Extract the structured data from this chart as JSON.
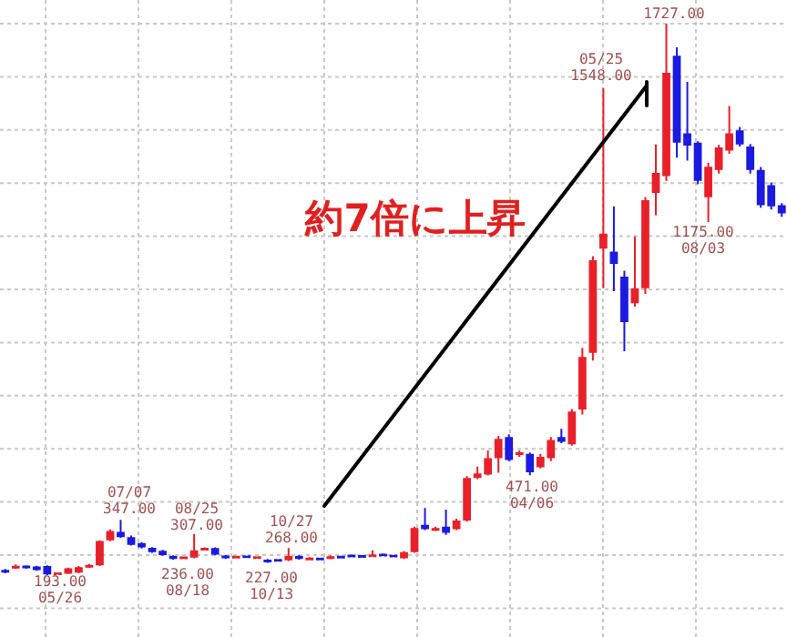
{
  "chart_data": {
    "type": "candlestick",
    "grid": true,
    "categories": [
      null,
      null,
      null,
      null,
      null,
      null,
      null,
      null,
      null,
      null,
      null,
      null,
      null,
      null,
      null,
      null,
      null,
      null,
      null,
      null,
      null,
      null,
      null,
      null,
      null,
      null,
      null,
      null,
      null,
      null,
      null,
      null,
      null,
      null,
      null,
      null,
      null,
      null,
      null,
      null,
      null,
      null,
      null,
      null,
      null,
      null,
      null,
      null,
      null,
      null,
      null,
      null,
      null,
      null,
      null,
      null,
      null,
      null,
      null,
      null,
      null,
      null,
      null,
      null,
      null,
      null,
      null,
      null,
      null,
      null,
      null,
      null,
      null,
      null,
      null
    ],
    "ohlc": [
      [
        207,
        210,
        198,
        200
      ],
      [
        212,
        223,
        210,
        218
      ],
      [
        218,
        220,
        211,
        213
      ],
      [
        217,
        219,
        205,
        207
      ],
      [
        218,
        220,
        193,
        195
      ],
      [
        195,
        200,
        195,
        198
      ],
      [
        197,
        214,
        196,
        212
      ],
      [
        200,
        218,
        198,
        215
      ],
      [
        215,
        224,
        213,
        220
      ],
      [
        220,
        290,
        218,
        288
      ],
      [
        290,
        320,
        287,
        316
      ],
      [
        313,
        347,
        297,
        299
      ],
      [
        299,
        303,
        275,
        277
      ],
      [
        282,
        285,
        267,
        270
      ],
      [
        269,
        271,
        255,
        257
      ],
      [
        261,
        263,
        247,
        249
      ],
      [
        246,
        248,
        236,
        238
      ],
      [
        240,
        245,
        238,
        242
      ],
      [
        242,
        307,
        240,
        262
      ],
      [
        264,
        270,
        262,
        266
      ],
      [
        268,
        270,
        248,
        250
      ],
      [
        247,
        249,
        238,
        240
      ],
      [
        242,
        246,
        240,
        244
      ],
      [
        245,
        247,
        241,
        243
      ],
      [
        241,
        245,
        239,
        243
      ],
      [
        236,
        238,
        227,
        229
      ],
      [
        235,
        237,
        231,
        233
      ],
      [
        234,
        268,
        232,
        246
      ],
      [
        246,
        249,
        236,
        238
      ],
      [
        236,
        243,
        234,
        240
      ],
      [
        239,
        241,
        235,
        237
      ],
      [
        239,
        248,
        237,
        245
      ],
      [
        244,
        247,
        240,
        242
      ],
      [
        247,
        250,
        243,
        245
      ],
      [
        246,
        249,
        242,
        244
      ],
      [
        246,
        262,
        244,
        248
      ],
      [
        250,
        253,
        246,
        248
      ],
      [
        247,
        249,
        243,
        245
      ],
      [
        240,
        260,
        238,
        257
      ],
      [
        257,
        328,
        255,
        324
      ],
      [
        333,
        380,
        318,
        321
      ],
      [
        319,
        328,
        316,
        322
      ],
      [
        328,
        375,
        305,
        311
      ],
      [
        321,
        350,
        318,
        345
      ],
      [
        345,
        468,
        342,
        463
      ],
      [
        463,
        495,
        460,
        476
      ],
      [
        473,
        540,
        470,
        518
      ],
      [
        518,
        580,
        478,
        572
      ],
      [
        577,
        585,
        510,
        513
      ],
      [
        527,
        540,
        522,
        535
      ],
      [
        530,
        534,
        471,
        479
      ],
      [
        493,
        530,
        490,
        522
      ],
      [
        518,
        577,
        510,
        569
      ],
      [
        577,
        600,
        560,
        564
      ],
      [
        557,
        655,
        553,
        648
      ],
      [
        654,
        825,
        640,
        800
      ],
      [
        811,
        1080,
        790,
        1069
      ],
      [
        1101,
        1548,
        991,
        1143
      ],
      [
        1093,
        1219,
        983,
        1059
      ],
      [
        1023,
        1040,
        816,
        897
      ],
      [
        949,
        1135,
        940,
        991
      ],
      [
        991,
        1245,
        975,
        1236
      ],
      [
        1256,
        1391,
        1194,
        1312
      ],
      [
        1303,
        1727,
        1290,
        1590
      ],
      [
        1638,
        1661,
        1354,
        1396
      ],
      [
        1422,
        1565,
        1346,
        1388
      ],
      [
        1396,
        1400,
        1280,
        1290
      ],
      [
        1244,
        1340,
        1175,
        1329
      ],
      [
        1320,
        1390,
        1310,
        1383
      ],
      [
        1374,
        1498,
        1365,
        1422
      ],
      [
        1430,
        1440,
        1385,
        1391
      ],
      [
        1385,
        1392,
        1310,
        1320
      ],
      [
        1320,
        1328,
        1215,
        1222
      ],
      [
        1278,
        1285,
        1210,
        1219
      ],
      [
        1222,
        1228,
        1190,
        1199
      ]
    ],
    "annotations": [
      "約7倍に上昇",
      "193.00\n05/26",
      "07/07\n347.00",
      "236.00\n08/18",
      "08/25\n307.00",
      "227.00\n10/13",
      "10/27\n268.00",
      "471.00\n04/06",
      "05/25\n1548.00",
      "1727.00",
      "1175.00\n08/03"
    ]
  }
}
